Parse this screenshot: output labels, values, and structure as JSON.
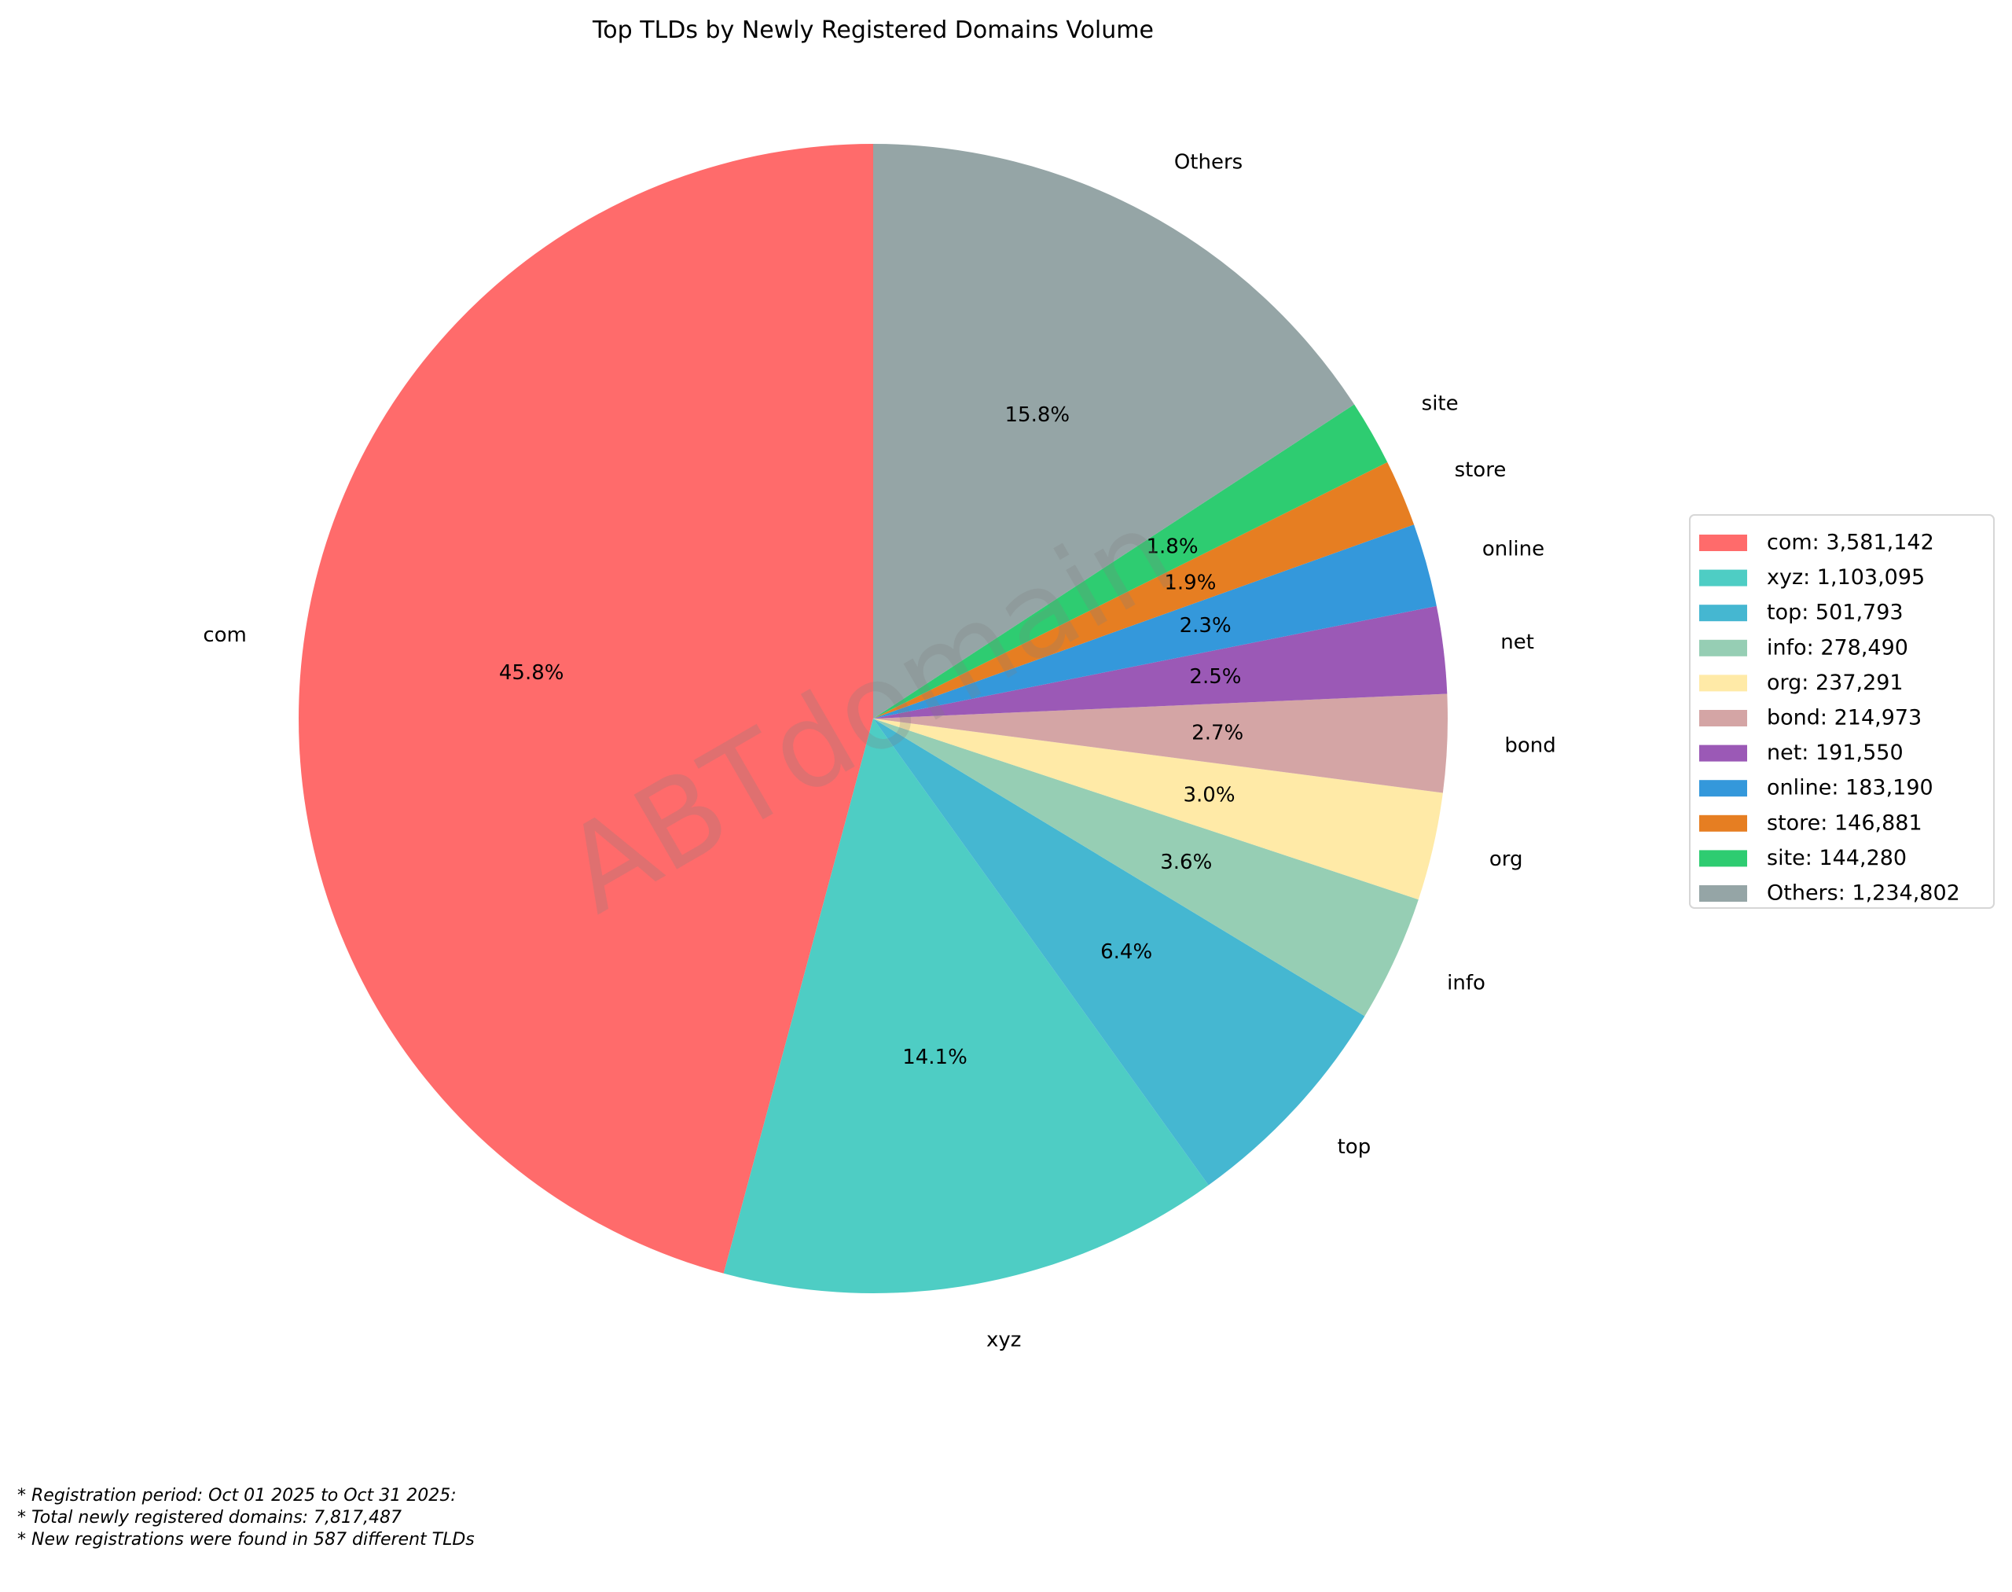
{
  "chart_data": {
    "type": "pie",
    "title": "Top TLDs by Newly Registered Domains Volume",
    "start_angle_deg": 90,
    "direction": "counterclockwise",
    "legend_position": "right",
    "categories": [
      "com",
      "xyz",
      "top",
      "info",
      "org",
      "bond",
      "net",
      "online",
      "store",
      "site",
      "Others"
    ],
    "values": [
      3581142,
      1103095,
      501793,
      278490,
      237291,
      214973,
      191550,
      183190,
      146881,
      144280,
      1234802
    ],
    "percent_labels": [
      "45.8%",
      "14.1%",
      "6.4%",
      "3.6%",
      "3.0%",
      "2.7%",
      "2.5%",
      "2.3%",
      "1.9%",
      "1.8%",
      "15.8%"
    ],
    "legend_entries": [
      "com: 3,581,142",
      "xyz: 1,103,095",
      "top: 501,793",
      "info: 278,490",
      "org: 237,291",
      "bond: 214,973",
      "net: 191,550",
      "online: 183,190",
      "store: 146,881",
      "site: 144,280",
      "Others: 1,234,802"
    ],
    "colors": [
      "#FF6B6B",
      "#4ECDC4",
      "#45B7D1",
      "#96CEB4",
      "#FFEAA7",
      "#D4A5A5",
      "#9B59B6",
      "#3498DB",
      "#E67E22",
      "#2ECC71",
      "#95A5A6"
    ]
  },
  "watermark": "ABTdomain",
  "footnotes": [
    "* Registration period: Oct 01 2025 to Oct 31 2025:",
    "* Total newly registered domains: 7,817,487",
    "* New registrations were found in 587 different TLDs"
  ]
}
